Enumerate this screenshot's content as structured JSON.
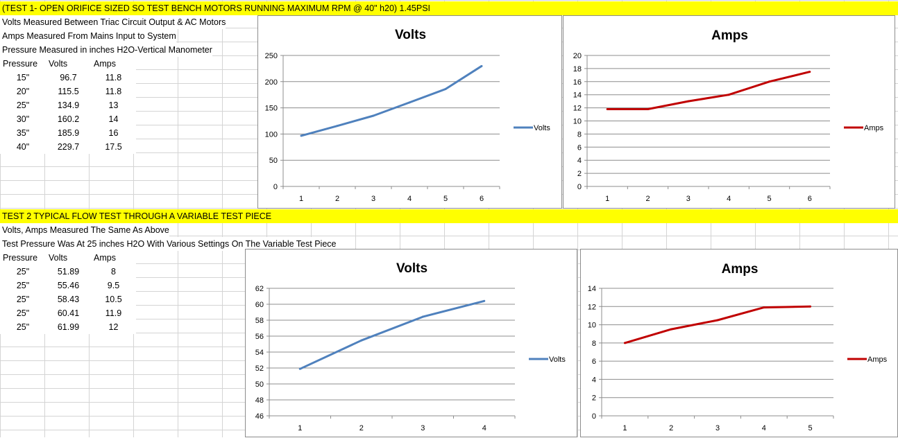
{
  "test1": {
    "banner": "(TEST 1- OPEN ORIFICE SIZED SO TEST BENCH MOTORS RUNNING MAXIMUM RPM @ 40\" h20) 1.45PSI",
    "notes": [
      "Volts Measured Between Triac Circuit Output & AC Motors",
      "Amps Measured From Mains Input to System",
      "Pressure Measured in inches H2O-Vertical Manometer"
    ],
    "headers": [
      "Pressure",
      "Volts",
      "Amps"
    ],
    "rows": [
      [
        "15\"",
        "96.7",
        "11.8"
      ],
      [
        "20\"",
        "115.5",
        "11.8"
      ],
      [
        "25\"",
        "134.9",
        "13"
      ],
      [
        "30\"",
        "160.2",
        "14"
      ],
      [
        "35\"",
        "185.9",
        "16"
      ],
      [
        "40\"",
        "229.7",
        "17.5"
      ]
    ]
  },
  "test2": {
    "banner": "TEST 2 TYPICAL FLOW TEST THROUGH A VARIABLE TEST PIECE",
    "notes": [
      "Volts, Amps Measured The Same As Above",
      "Test Pressure Was At 25 inches H2O With Various Settings On The Variable Test Piece"
    ],
    "headers": [
      "Pressure",
      "Volts",
      "Amps"
    ],
    "rows": [
      [
        "25\"",
        "51.89",
        "8"
      ],
      [
        "25\"",
        "55.46",
        "9.5"
      ],
      [
        "25\"",
        "58.43",
        "10.5"
      ],
      [
        "25\"",
        "60.41",
        "11.9"
      ],
      [
        "25\"",
        "61.99",
        "12"
      ]
    ]
  },
  "chart_data": [
    {
      "type": "line",
      "title": "Volts",
      "x": [
        1,
        2,
        3,
        4,
        5,
        6
      ],
      "series": [
        {
          "name": "Volts",
          "values": [
            96.7,
            115.5,
            134.9,
            160.2,
            185.9,
            229.7
          ],
          "color": "#4f81bd"
        }
      ],
      "ylim": [
        0,
        250
      ],
      "yticks": [
        0,
        50,
        100,
        150,
        200,
        250
      ],
      "grid": true,
      "legend": "right"
    },
    {
      "type": "line",
      "title": "Amps",
      "x": [
        1,
        2,
        3,
        4,
        5,
        6
      ],
      "series": [
        {
          "name": "Amps",
          "values": [
            11.8,
            11.8,
            13,
            14,
            16,
            17.5
          ],
          "color": "#c00000"
        }
      ],
      "ylim": [
        0,
        20
      ],
      "yticks": [
        0,
        2,
        4,
        6,
        8,
        10,
        12,
        14,
        16,
        18,
        20
      ],
      "grid": true,
      "legend": "right"
    },
    {
      "type": "line",
      "title": "Volts",
      "x": [
        1,
        2,
        3,
        4
      ],
      "series": [
        {
          "name": "Volts",
          "values": [
            51.89,
            55.46,
            58.43,
            60.41
          ],
          "color": "#4f81bd"
        }
      ],
      "ylim": [
        46,
        62
      ],
      "yticks": [
        46,
        48,
        50,
        52,
        54,
        56,
        58,
        60,
        62
      ],
      "grid": true,
      "legend": "right"
    },
    {
      "type": "line",
      "title": "Amps",
      "x": [
        1,
        2,
        3,
        4,
        5
      ],
      "series": [
        {
          "name": "Amps",
          "values": [
            8,
            9.5,
            10.5,
            11.9,
            12
          ],
          "color": "#c00000"
        }
      ],
      "ylim": [
        0,
        14
      ],
      "yticks": [
        0,
        2,
        4,
        6,
        8,
        10,
        12,
        14
      ],
      "grid": true,
      "legend": "right"
    }
  ]
}
